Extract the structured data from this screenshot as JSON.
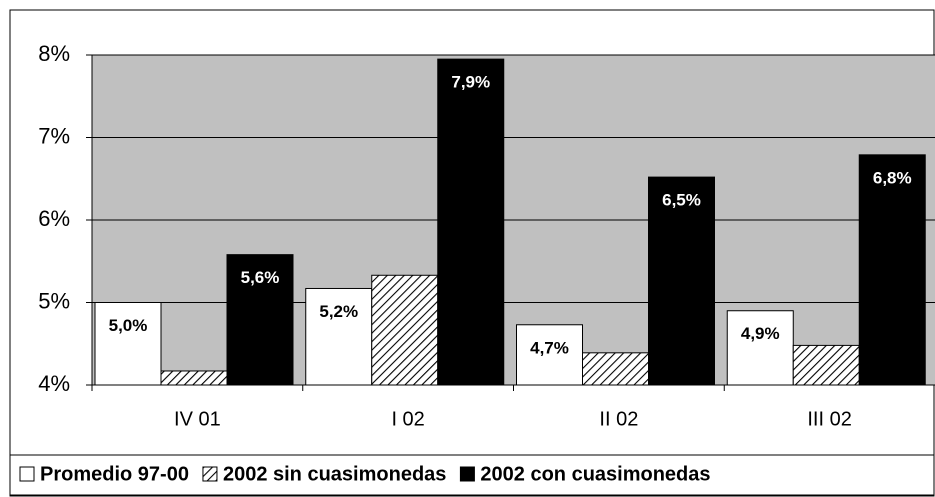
{
  "chart_data": {
    "type": "bar",
    "categories": [
      "IV 01",
      "I 02",
      "II 02",
      "III 02"
    ],
    "series": [
      {
        "name": "Promedio 97-00",
        "color": "#ffffff",
        "values": [
          5.0,
          5.17,
          4.73,
          4.9
        ],
        "value_labels": [
          "5,0%",
          "5,2%",
          "4,7%",
          "4,9%"
        ]
      },
      {
        "name": "2002 sin cuasimonedas",
        "color": "hatch",
        "values": [
          4.17,
          5.33,
          4.39,
          4.48
        ]
      },
      {
        "name": "2002 con cuasimonedas",
        "color": "#000000",
        "values": [
          5.58,
          7.95,
          6.52,
          6.79
        ],
        "value_labels": [
          "5,6%",
          "7,9%",
          "6,5%",
          "6,8%"
        ]
      }
    ],
    "ylim": [
      4,
      8
    ],
    "yticks": [
      {
        "value": 4,
        "label": "4%"
      },
      {
        "value": 5,
        "label": "5%"
      },
      {
        "value": 6,
        "label": "6%"
      },
      {
        "value": 7,
        "label": "7%"
      },
      {
        "value": 8,
        "label": "8%"
      }
    ],
    "grid": true,
    "legend": "bottom"
  }
}
